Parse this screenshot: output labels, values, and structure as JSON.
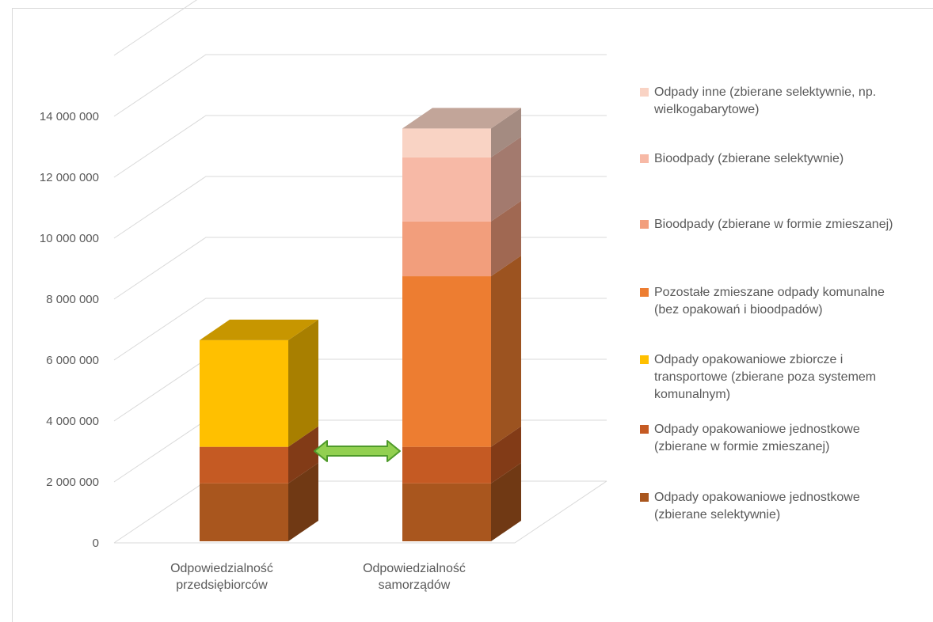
{
  "chart_data": {
    "type": "bar",
    "stacked": true,
    "three_d": true,
    "categories": [
      "Odpowiedzialność przedsiębiorców",
      "Odpowiedzialność samorządów"
    ],
    "category_label_lines": [
      [
        "Odpowiedzialność",
        "przedsiębiorców"
      ],
      [
        "Odpowiedzialność",
        "samorządów"
      ]
    ],
    "ylim": [
      0,
      16000000
    ],
    "yticks": [
      0,
      2000000,
      4000000,
      6000000,
      8000000,
      10000000,
      12000000,
      14000000
    ],
    "ytick_labels": [
      "0",
      "2 000 000",
      "4 000 000",
      "6 000 000",
      "8 000 000",
      "10 000 000",
      "12 000 000",
      "14 000 000"
    ],
    "gridlines": true,
    "legend_position": "right",
    "series": [
      {
        "name": "Odpady opakowaniowe jednostkowe (zbierane selektywnie)",
        "legend_lines": [
          "Odpady opakowaniowe jednostkowe",
          "(zbierane selektywnie)"
        ],
        "color": "#A9561E",
        "values": [
          1900000,
          1900000
        ]
      },
      {
        "name": "Odpady opakowaniowe jednostkowe (zbierane w formie zmieszanej)",
        "legend_lines": [
          "Odpady opakowaniowe jednostkowe",
          "(zbierane w formie zmieszanej)"
        ],
        "color": "#C55A23",
        "values": [
          1200000,
          1200000
        ]
      },
      {
        "name": "Odpady opakowaniowe zbiorcze i transportowe (zbierane poza systemem komunalnym)",
        "legend_lines": [
          "Odpady opakowaniowe zbiorcze i",
          "transportowe (zbierane poza systemem",
          "komunalnym)"
        ],
        "color": "#FFC000",
        "values": [
          3500000,
          0
        ]
      },
      {
        "name": "Pozostałe zmieszane odpady komunalne (bez opakowań i bioodpadów)",
        "legend_lines": [
          "Pozostałe zmieszane odpady komunalne",
          "(bez opakowań i bioodpadów)"
        ],
        "color": "#ED7D31",
        "values": [
          0,
          5600000
        ]
      },
      {
        "name": "Bioodpady (zbierane w formie zmieszanej)",
        "legend_lines": [
          "Bioodpady (zbierane w formie zmieszanej)"
        ],
        "color": "#F29E7C",
        "values": [
          0,
          1800000
        ]
      },
      {
        "name": "Bioodpady (zbierane selektywnie)",
        "legend_lines": [
          "Bioodpady (zbierane selektywnie)"
        ],
        "color": "#F7B9A6",
        "values": [
          0,
          2100000
        ]
      },
      {
        "name": "Odpady inne (zbierane selektywnie, np. wielkogabarytowe)",
        "legend_lines": [
          "Odpady inne (zbierane selektywnie, np.",
          "wielkogabarytowe)"
        ],
        "color": "#F9D3C4",
        "values": [
          0,
          950000
        ]
      }
    ],
    "annotation": {
      "type": "double-arrow",
      "color": "#92D050",
      "between": [
        "Odpowiedzialność przedsiębiorców",
        "Odpowiedzialność samorządów"
      ]
    }
  }
}
